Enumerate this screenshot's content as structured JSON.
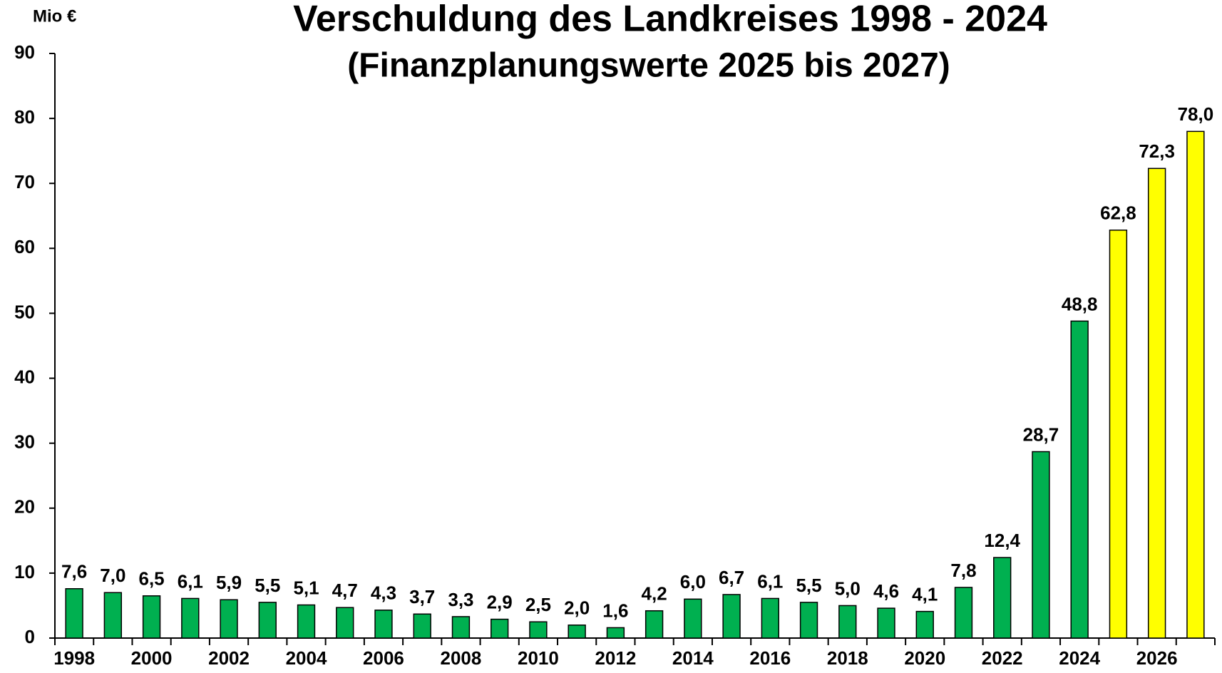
{
  "chart_data": {
    "type": "bar",
    "title": "Verschuldung des Landkreises 1998 - 2024",
    "subtitle": "(Finanzplanungswerte 2025 bis 2027)",
    "y_axis_label": "Mio €",
    "categories": [
      "1998",
      null,
      "2000",
      null,
      "2002",
      null,
      "2004",
      null,
      "2006",
      null,
      "2008",
      null,
      "2010",
      null,
      "2012",
      null,
      "2014",
      null,
      "2016",
      null,
      "2018",
      null,
      "2020",
      null,
      "2022",
      null,
      "2024",
      null,
      "2026",
      null
    ],
    "values": [
      7.6,
      7.0,
      6.5,
      6.1,
      5.9,
      5.5,
      5.1,
      4.7,
      4.3,
      3.7,
      3.3,
      2.9,
      2.5,
      2.0,
      1.6,
      4.2,
      6.0,
      6.7,
      6.1,
      5.5,
      5.0,
      4.6,
      4.1,
      7.8,
      12.4,
      28.7,
      48.8,
      62.8,
      72.3,
      78.0
    ],
    "value_labels": [
      "7,6",
      "7,0",
      "6,5",
      "6,1",
      "5,9",
      "5,5",
      "5,1",
      "4,7",
      "4,3",
      "3,7",
      "3,3",
      "2,9",
      "2,5",
      "2,0",
      "1,6",
      "4,2",
      "6,0",
      "6,7",
      "6,1",
      "5,5",
      "5,0",
      "4,6",
      "4,1",
      "7,8",
      "12,4",
      "28,7",
      "48,8",
      "62,8",
      "72,3",
      "78,0"
    ],
    "colors": [
      "#00b050",
      "#00b050",
      "#00b050",
      "#00b050",
      "#00b050",
      "#00b050",
      "#00b050",
      "#00b050",
      "#00b050",
      "#00b050",
      "#00b050",
      "#00b050",
      "#00b050",
      "#00b050",
      "#00b050",
      "#00b050",
      "#00b050",
      "#00b050",
      "#00b050",
      "#00b050",
      "#00b050",
      "#00b050",
      "#00b050",
      "#00b050",
      "#00b050",
      "#00b050",
      "#00b050",
      "#ffff00",
      "#ffff00",
      "#ffff00"
    ],
    "ylim": [
      0,
      90
    ],
    "yticks": [
      0,
      10,
      20,
      30,
      40,
      50,
      60,
      70,
      80,
      90
    ],
    "grid": false
  }
}
